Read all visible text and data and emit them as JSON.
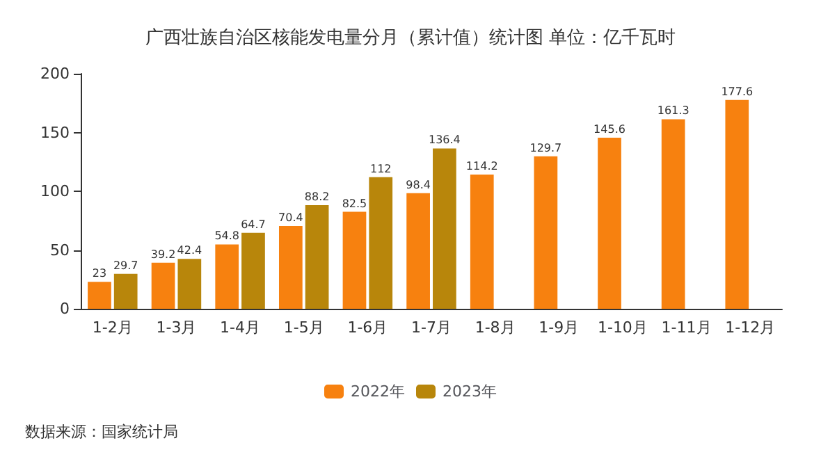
{
  "chart_data": {
    "type": "bar",
    "title": "广西壮族自治区核能发电量分月（累计值）统计图 单位：亿千瓦时",
    "categories": [
      "1-2月",
      "1-3月",
      "1-4月",
      "1-5月",
      "1-6月",
      "1-7月",
      "1-8月",
      "1-9月",
      "1-10月",
      "1-11月",
      "1-12月"
    ],
    "series": [
      {
        "name": "2022年",
        "color": "#f7810f",
        "values": [
          23,
          39.2,
          54.8,
          70.4,
          82.5,
          98.4,
          114.2,
          129.7,
          145.6,
          161.3,
          177.6
        ]
      },
      {
        "name": "2023年",
        "color": "#b8860b",
        "values": [
          29.7,
          42.4,
          64.7,
          88.2,
          112,
          136.4,
          null,
          null,
          null,
          null,
          null
        ]
      }
    ],
    "ylim": [
      0,
      200
    ],
    "yticks": [
      0,
      50,
      100,
      150,
      200
    ],
    "grid": false,
    "legend": "bottom",
    "data_labels": true,
    "annotations": [
      "数据来源：国家统计局"
    ]
  }
}
